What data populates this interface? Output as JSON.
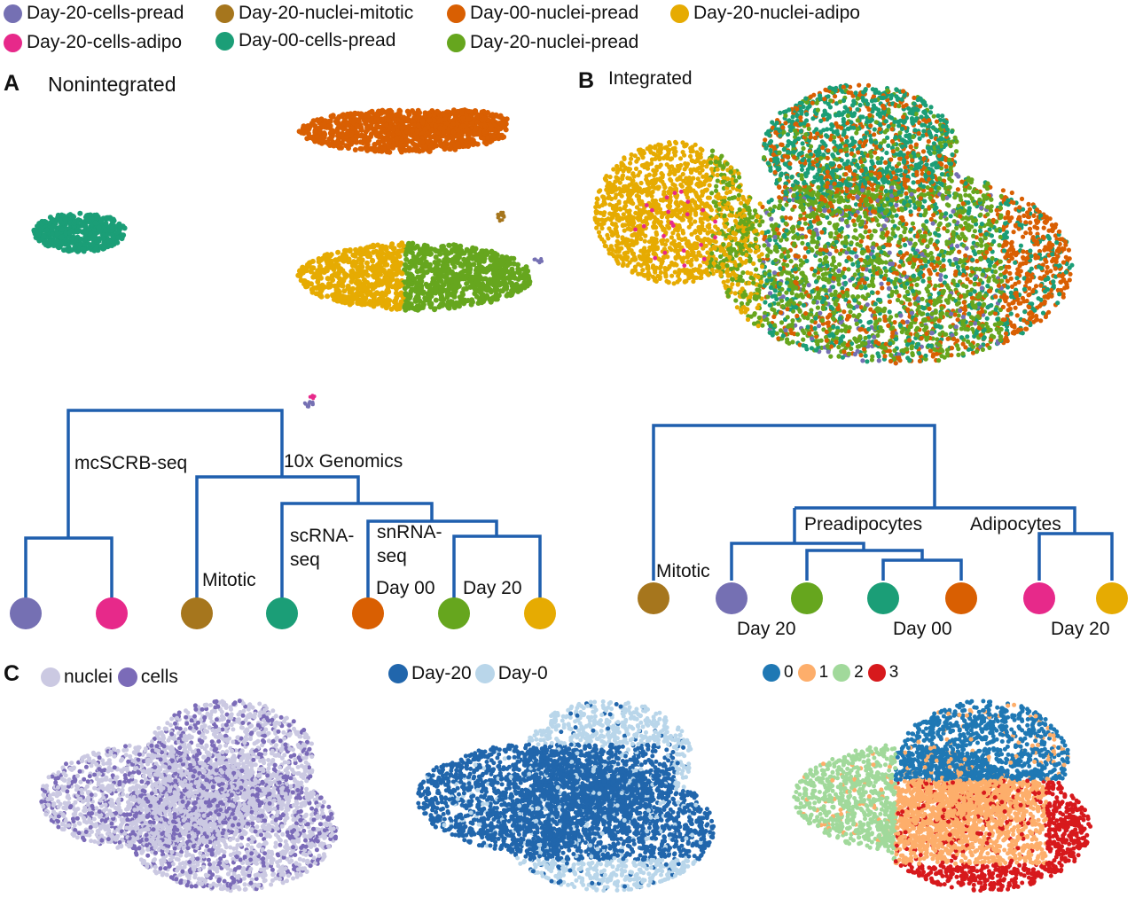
{
  "legend": [
    {
      "label": "Day-20-cells-pread",
      "color": "#7570b3"
    },
    {
      "label": "Day-20-nuclei-mitotic",
      "color": "#a6761d"
    },
    {
      "label": "Day-00-nuclei-pread",
      "color": "#d95f02"
    },
    {
      "label": "Day-20-nuclei-adipo",
      "color": "#e6ab02"
    },
    {
      "label": "Day-20-cells-adipo",
      "color": "#e7298a"
    },
    {
      "label": "Day-00-cells-pread",
      "color": "#1b9e77"
    },
    {
      "label": "Day-20-nuclei-pread",
      "color": "#66a61e"
    }
  ],
  "panels": {
    "a_letter": "A",
    "a_title": "Nonintegrated",
    "b_letter": "B",
    "b_title": "Integrated",
    "c_letter": "C"
  },
  "dendrogram_a": {
    "labels": [
      "mcSCRB-seq",
      "10x Genomics",
      "Mitotic",
      "scRNA-",
      "seq",
      "snRNA-",
      "seq",
      "Day 00",
      "Day 20"
    ],
    "leaves": [
      "Day-20-cells-pread",
      "Day-20-cells-adipo",
      "Day-20-nuclei-mitotic",
      "Day-00-cells-pread",
      "Day-00-nuclei-pread",
      "Day-20-nuclei-pread",
      "Day-20-nuclei-adipo"
    ],
    "line_color": "#1f5fae"
  },
  "dendrogram_b": {
    "labels": [
      "Mitotic",
      "Preadipocytes",
      "Adipocytes",
      "Day 20",
      "Day 00",
      "Day 20"
    ],
    "leaves": [
      "Day-20-nuclei-mitotic",
      "Day-20-cells-pread",
      "Day-20-nuclei-pread",
      "Day-00-cells-pread",
      "Day-00-nuclei-pread",
      "Day-20-cells-adipo",
      "Day-20-nuclei-adipo"
    ],
    "line_color": "#1f5fae"
  },
  "c_plots": [
    {
      "legend": [
        {
          "label": "nuclei",
          "color": "#cbc9e2"
        },
        {
          "label": "cells",
          "color": "#7b6bb8"
        }
      ]
    },
    {
      "legend": [
        {
          "label": "Day-20",
          "color": "#2166ac"
        },
        {
          "label": "Day-0",
          "color": "#b9d6ea"
        }
      ]
    },
    {
      "legend": [
        {
          "label": "0",
          "color": "#1f78b4"
        },
        {
          "label": "1",
          "color": "#fdae6b"
        },
        {
          "label": "2",
          "color": "#a1d99b"
        },
        {
          "label": "3",
          "color": "#d7191c"
        }
      ]
    }
  ],
  "chart_data": {
    "type": "scatter",
    "description_groups": [
      "Day-20-cells-pread",
      "Day-20-nuclei-mitotic",
      "Day-00-nuclei-pread",
      "Day-20-nuclei-adipo",
      "Day-20-cells-adipo",
      "Day-00-cells-pread",
      "Day-20-nuclei-pread"
    ],
    "grid": false,
    "legend_position": "top"
  }
}
